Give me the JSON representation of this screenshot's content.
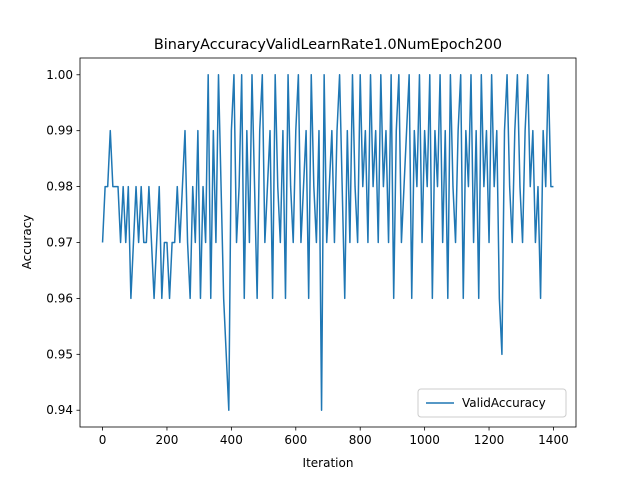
{
  "chart_data": {
    "type": "line",
    "title": "BinaryAccuracyValidLearnRate1.0NumEpoch200",
    "x_label": "Iteration",
    "y_label": "Accuracy",
    "x": [
      0,
      8,
      16,
      24,
      32,
      40,
      48,
      56,
      64,
      72,
      80,
      88,
      96,
      104,
      112,
      120,
      128,
      136,
      144,
      152,
      160,
      168,
      176,
      184,
      192,
      200,
      208,
      216,
      224,
      232,
      240,
      248,
      256,
      264,
      272,
      280,
      288,
      296,
      304,
      312,
      320,
      328,
      336,
      344,
      352,
      360,
      368,
      376,
      384,
      392,
      400,
      408,
      416,
      424,
      432,
      440,
      448,
      456,
      464,
      472,
      480,
      488,
      496,
      504,
      512,
      520,
      528,
      536,
      544,
      552,
      560,
      568,
      576,
      584,
      592,
      600,
      608,
      616,
      624,
      632,
      640,
      648,
      656,
      664,
      672,
      680,
      688,
      696,
      704,
      712,
      720,
      728,
      736,
      744,
      752,
      760,
      768,
      776,
      784,
      792,
      800,
      808,
      816,
      824,
      832,
      840,
      848,
      856,
      864,
      872,
      880,
      888,
      896,
      904,
      912,
      920,
      928,
      936,
      944,
      952,
      960,
      968,
      976,
      984,
      992,
      1000,
      1008,
      1016,
      1024,
      1032,
      1040,
      1048,
      1056,
      1064,
      1072,
      1080,
      1088,
      1096,
      1104,
      1112,
      1120,
      1128,
      1136,
      1144,
      1152,
      1160,
      1168,
      1176,
      1184,
      1192,
      1200,
      1208,
      1216,
      1224,
      1232,
      1240,
      1248,
      1256,
      1264,
      1272,
      1280,
      1288,
      1296,
      1304,
      1312,
      1320,
      1328,
      1336,
      1344,
      1352,
      1360,
      1368,
      1376,
      1384,
      1392,
      1400
    ],
    "series": [
      {
        "name": "ValidAccuracy",
        "color": "#1f77b4",
        "values": [
          0.97,
          0.98,
          0.98,
          0.99,
          0.98,
          0.98,
          0.98,
          0.97,
          0.98,
          0.97,
          0.98,
          0.96,
          0.97,
          0.98,
          0.97,
          0.98,
          0.97,
          0.97,
          0.98,
          0.97,
          0.96,
          0.97,
          0.98,
          0.96,
          0.97,
          0.97,
          0.96,
          0.97,
          0.97,
          0.98,
          0.97,
          0.98,
          0.99,
          0.97,
          0.96,
          0.98,
          0.97,
          0.99,
          0.96,
          0.98,
          0.97,
          1.0,
          0.96,
          0.99,
          0.97,
          1.0,
          0.98,
          0.96,
          0.95,
          0.94,
          0.99,
          1.0,
          0.97,
          0.98,
          1.0,
          0.96,
          0.99,
          0.97,
          1.0,
          0.98,
          0.96,
          0.99,
          1.0,
          0.97,
          0.98,
          0.99,
          0.96,
          1.0,
          0.98,
          0.97,
          0.99,
          0.96,
          1.0,
          0.98,
          0.97,
          0.99,
          1.0,
          0.97,
          0.98,
          0.99,
          0.96,
          1.0,
          0.98,
          0.97,
          0.99,
          0.94,
          1.0,
          0.97,
          0.98,
          0.99,
          0.97,
          0.99,
          1.0,
          0.98,
          0.96,
          0.99,
          0.97,
          1.0,
          0.98,
          0.97,
          1.0,
          0.98,
          0.99,
          0.97,
          1.0,
          0.98,
          0.99,
          0.97,
          1.0,
          0.98,
          0.99,
          0.97,
          1.0,
          0.96,
          0.99,
          1.0,
          0.97,
          0.98,
          0.99,
          1.0,
          0.96,
          0.99,
          0.98,
          1.0,
          0.97,
          0.99,
          0.98,
          1.0,
          0.96,
          0.99,
          0.98,
          1.0,
          0.97,
          0.99,
          0.96,
          1.0,
          0.98,
          0.97,
          0.99,
          1.0,
          0.96,
          0.99,
          0.98,
          1.0,
          0.97,
          0.99,
          0.96,
          1.0,
          0.98,
          0.99,
          0.97,
          1.0,
          0.98,
          0.99,
          0.96,
          0.95,
          0.99,
          1.0,
          0.98,
          0.97,
          0.99,
          1.0,
          0.98,
          0.97,
          0.99,
          1.0,
          0.98,
          0.99,
          0.97,
          0.98,
          0.96,
          0.99,
          0.98,
          1.0,
          0.98,
          0.98
        ]
      }
    ],
    "xlim": [
      -70,
      1470
    ],
    "ylim": [
      0.937,
      1.003
    ],
    "xticks": [
      0,
      200,
      400,
      600,
      800,
      1000,
      1200,
      1400
    ],
    "yticks": [
      0.94,
      0.95,
      0.96,
      0.97,
      0.98,
      0.99,
      {
        "value": 1,
        "label": "1.00"
      }
    ],
    "legend": "lower right"
  }
}
